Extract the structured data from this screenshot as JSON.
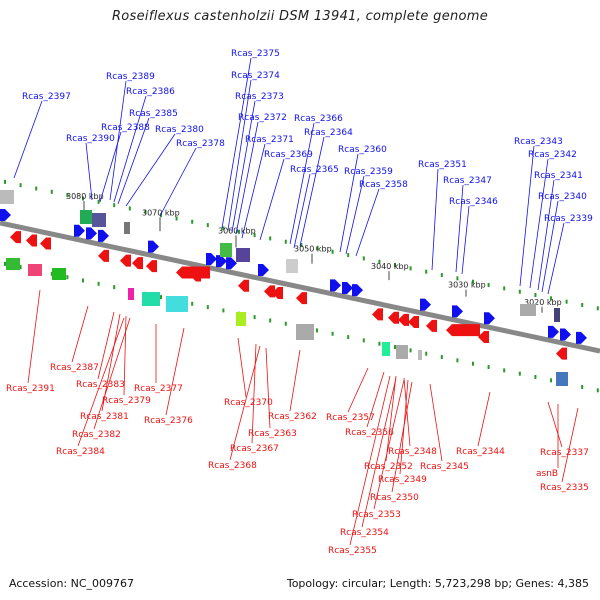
{
  "title": "Roseiflexus castenholzii DSM 13941, complete genome",
  "accession": "Accession: NC_009767",
  "topology": "Topology: circular; Length: 5,723,298 bp; Genes: 4,385",
  "colors": {
    "forward": "#1010ee",
    "reverse": "#ee1111",
    "backbone": "#888888",
    "ticks": "#2a9a2a"
  },
  "kbp_marks": [
    "3080 kbp",
    "3070 kbp",
    "3060 kbp",
    "3050 kbp",
    "3040 kbp",
    "3030 kbp",
    "3020 kbp"
  ],
  "top_labels": [
    "Rcas_2397",
    "Rcas_2389",
    "Rcas_2386",
    "Rcas_2388",
    "Rcas_2385",
    "Rcas_2390",
    "Rcas_2380",
    "Rcas_2378",
    "Rcas_2375",
    "Rcas_2374",
    "Rcas_2373",
    "Rcas_2372",
    "Rcas_2371",
    "Rcas_2369",
    "Rcas_2366",
    "Rcas_2364",
    "Rcas_2365",
    "Rcas_2360",
    "Rcas_2359",
    "Rcas_2358",
    "Rcas_2351",
    "Rcas_2347",
    "Rcas_2346",
    "Rcas_2343",
    "Rcas_2342",
    "Rcas_2341",
    "Rcas_2340",
    "Rcas_2339"
  ],
  "bottom_labels": [
    "Rcas_2391",
    "Rcas_2387",
    "Rcas_2383",
    "Rcas_2379",
    "Rcas_2381",
    "Rcas_2382",
    "Rcas_2384",
    "Rcas_2377",
    "Rcas_2376",
    "Rcas_2370",
    "Rcas_2367",
    "Rcas_2368",
    "Rcas_2363",
    "Rcas_2362",
    "Rcas_2357",
    "Rcas_2356",
    "Rcas_2352",
    "Rcas_2348",
    "Rcas_2345",
    "Rcas_2349",
    "Rcas_2350",
    "Rcas_2353",
    "Rcas_2354",
    "Rcas_2355",
    "Rcas_2344",
    "Rcas_2337",
    "asnB",
    "Rcas_2335"
  ]
}
